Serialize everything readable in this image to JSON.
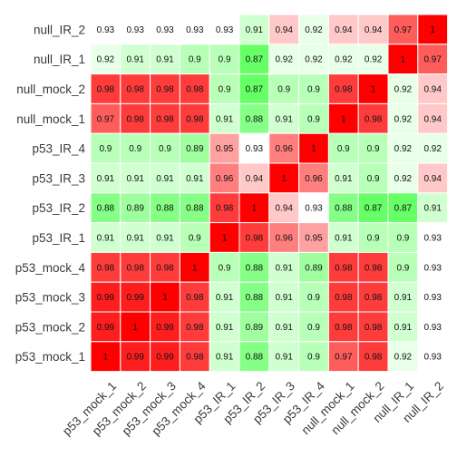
{
  "chart_data": {
    "type": "heatmap",
    "title": "",
    "xlabel": "",
    "ylabel": "",
    "legend": "none",
    "color_scale": {
      "low": "#66ff66",
      "mid": "#ffffff",
      "high": "#ff0000",
      "low_value": 0.87,
      "mid_value": 0.93,
      "high_value": 1.0
    },
    "x_labels": [
      "p53_mock_1",
      "p53_mock_2",
      "p53_mock_3",
      "p53_mock_4",
      "p53_IR_1",
      "p53_IR_2",
      "p53_IR_3",
      "p53_IR_4",
      "null_mock_1",
      "null_mock_2",
      "null_IR_1",
      "null_IR_2"
    ],
    "y_labels": [
      "null_IR_2",
      "null_IR_1",
      "null_mock_2",
      "null_mock_1",
      "p53_IR_4",
      "p53_IR_3",
      "p53_IR_2",
      "p53_IR_1",
      "p53_mock_4",
      "p53_mock_3",
      "p53_mock_2",
      "p53_mock_1"
    ],
    "values": [
      [
        0.93,
        0.93,
        0.93,
        0.93,
        0.93,
        0.91,
        0.94,
        0.92,
        0.94,
        0.94,
        0.97,
        1
      ],
      [
        0.92,
        0.91,
        0.91,
        0.9,
        0.9,
        0.87,
        0.92,
        0.92,
        0.92,
        0.92,
        1,
        0.97
      ],
      [
        0.98,
        0.98,
        0.98,
        0.98,
        0.9,
        0.87,
        0.9,
        0.9,
        0.98,
        1,
        0.92,
        0.94
      ],
      [
        0.97,
        0.98,
        0.98,
        0.98,
        0.91,
        0.88,
        0.91,
        0.9,
        1,
        0.98,
        0.92,
        0.94
      ],
      [
        0.9,
        0.9,
        0.9,
        0.89,
        0.95,
        0.93,
        0.96,
        1,
        0.9,
        0.9,
        0.92,
        0.92
      ],
      [
        0.91,
        0.91,
        0.91,
        0.91,
        0.96,
        0.94,
        1,
        0.96,
        0.91,
        0.9,
        0.92,
        0.94
      ],
      [
        0.88,
        0.89,
        0.88,
        0.88,
        0.98,
        1,
        0.94,
        0.93,
        0.88,
        0.87,
        0.87,
        0.91
      ],
      [
        0.91,
        0.91,
        0.91,
        0.9,
        1,
        0.98,
        0.96,
        0.95,
        0.91,
        0.9,
        0.9,
        0.93
      ],
      [
        0.98,
        0.98,
        0.98,
        1,
        0.9,
        0.88,
        0.91,
        0.89,
        0.98,
        0.98,
        0.9,
        0.93
      ],
      [
        0.99,
        0.99,
        1,
        0.98,
        0.91,
        0.88,
        0.91,
        0.9,
        0.98,
        0.98,
        0.91,
        0.93
      ],
      [
        0.99,
        1,
        0.99,
        0.98,
        0.91,
        0.89,
        0.91,
        0.9,
        0.98,
        0.98,
        0.91,
        0.93
      ],
      [
        1,
        0.99,
        0.99,
        0.98,
        0.91,
        0.88,
        0.91,
        0.9,
        0.97,
        0.98,
        0.92,
        0.93
      ]
    ]
  }
}
